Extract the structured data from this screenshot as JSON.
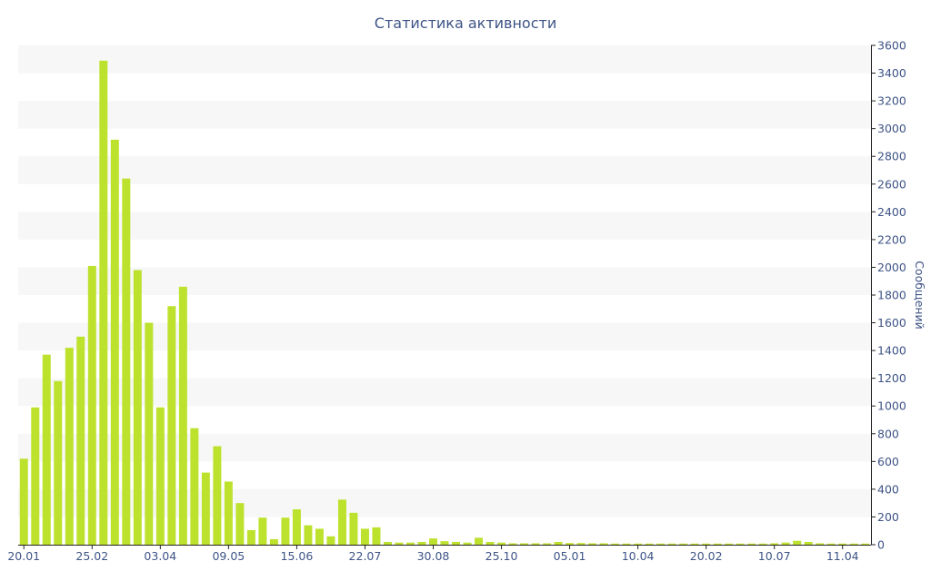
{
  "colors": {
    "bar": "#bde22e",
    "text": "#3e5486",
    "band": "#f7f7f7",
    "axis": "#222222"
  },
  "chart_data": {
    "type": "bar",
    "title": "Статистика активности",
    "xlabel": "",
    "ylabel": "Сообщений",
    "ylim": [
      0,
      3600
    ],
    "y_ticks": [
      0,
      200,
      400,
      600,
      800,
      1000,
      1200,
      1400,
      1600,
      1800,
      2000,
      2200,
      2400,
      2600,
      2800,
      3000,
      3200,
      3400,
      3600
    ],
    "y_axis_side": "right",
    "grid": "horizontal alternating bands",
    "x_tick_labels": [
      {
        "index": 0,
        "label": "20.01"
      },
      {
        "index": 6,
        "label": "25.02"
      },
      {
        "index": 12,
        "label": "03.04"
      },
      {
        "index": 18,
        "label": "09.05"
      },
      {
        "index": 24,
        "label": "15.06"
      },
      {
        "index": 30,
        "label": "22.07"
      },
      {
        "index": 36,
        "label": "30.08"
      },
      {
        "index": 42,
        "label": "25.10"
      },
      {
        "index": 48,
        "label": "05.01"
      },
      {
        "index": 54,
        "label": "10.04"
      },
      {
        "index": 60,
        "label": "20.02"
      },
      {
        "index": 66,
        "label": "10.07"
      },
      {
        "index": 72,
        "label": "11.04"
      }
    ],
    "values": [
      620,
      990,
      1370,
      1180,
      1420,
      1500,
      2010,
      3490,
      2920,
      2640,
      1980,
      1600,
      990,
      1720,
      1860,
      840,
      520,
      710,
      455,
      300,
      105,
      195,
      40,
      195,
      255,
      140,
      115,
      60,
      325,
      230,
      115,
      125,
      20,
      15,
      15,
      20,
      45,
      25,
      20,
      15,
      50,
      20,
      15,
      10,
      10,
      10,
      10,
      20,
      12,
      12,
      10,
      10,
      8,
      8,
      8,
      8,
      8,
      8,
      8,
      8,
      8,
      8,
      8,
      8,
      8,
      8,
      10,
      15,
      28,
      20,
      10,
      8,
      8,
      8,
      8
    ]
  }
}
